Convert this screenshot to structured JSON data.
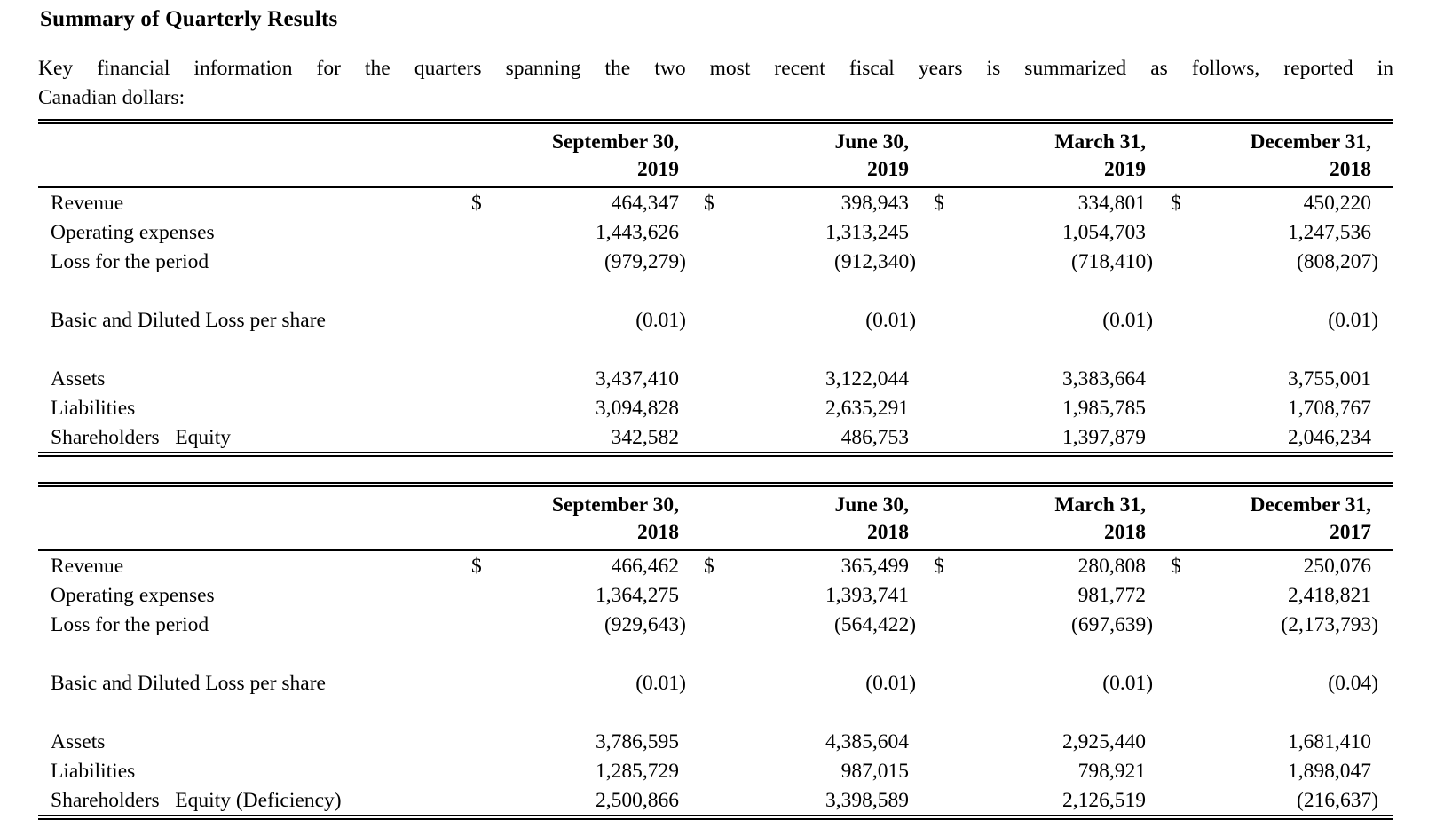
{
  "page": {
    "title": "Summary of Quarterly Results",
    "intro_line1": "Key financial information for the quarters spanning the two most recent fiscal years is summarized as follows, reported in",
    "intro_line2": "Canadian dollars:"
  },
  "currency_symbol": "$",
  "tables": [
    {
      "columns": [
        {
          "line1": "September 30,",
          "line2": "2019"
        },
        {
          "line1": "June 30,",
          "line2": "2019"
        },
        {
          "line1": "March 31,",
          "line2": "2019"
        },
        {
          "line1": "December 31,",
          "line2": "2018"
        }
      ],
      "rows": [
        {
          "label": "Revenue",
          "currency": "$",
          "values": [
            "464,347",
            "398,943",
            "334,801",
            "450,220"
          ]
        },
        {
          "label": "Operating expenses",
          "currency": "",
          "values": [
            "1,443,626",
            "1,313,245",
            "1,054,703",
            "1,247,536"
          ]
        },
        {
          "label": "Loss for the period",
          "currency": "",
          "values": [
            "(979,279)",
            "(912,340)",
            "(718,410)",
            "(808,207)"
          ]
        },
        {
          "label": "",
          "currency": "",
          "values": [
            "",
            "",
            "",
            ""
          ]
        },
        {
          "label": "Basic and Diluted Loss per share",
          "currency": "",
          "values": [
            "(0.01)",
            "(0.01)",
            "(0.01)",
            "(0.01)"
          ]
        },
        {
          "label": "",
          "currency": "",
          "values": [
            "",
            "",
            "",
            ""
          ]
        },
        {
          "label": "Assets",
          "currency": "",
          "values": [
            "3,437,410",
            "3,122,044",
            "3,383,664",
            "3,755,001"
          ]
        },
        {
          "label": "Liabilities",
          "currency": "",
          "values": [
            "3,094,828",
            "2,635,291",
            "1,985,785",
            "1,708,767"
          ]
        },
        {
          "label": "Shareholders   Equity",
          "currency": "",
          "values": [
            "342,582",
            "486,753",
            "1,397,879",
            "2,046,234"
          ]
        }
      ]
    },
    {
      "columns": [
        {
          "line1": "September 30,",
          "line2": "2018"
        },
        {
          "line1": "June 30,",
          "line2": "2018"
        },
        {
          "line1": "March 31,",
          "line2": "2018"
        },
        {
          "line1": "December 31,",
          "line2": "2017"
        }
      ],
      "rows": [
        {
          "label": "Revenue",
          "currency": "$",
          "values": [
            "466,462",
            "365,499",
            "280,808",
            "250,076"
          ]
        },
        {
          "label": "Operating expenses",
          "currency": "",
          "values": [
            "1,364,275",
            "1,393,741",
            "981,772",
            "2,418,821"
          ]
        },
        {
          "label": "Loss for the period",
          "currency": "",
          "values": [
            "(929,643)",
            "(564,422)",
            "(697,639)",
            "(2,173,793)"
          ]
        },
        {
          "label": "",
          "currency": "",
          "values": [
            "",
            "",
            "",
            ""
          ]
        },
        {
          "label": "Basic and Diluted Loss per share",
          "currency": "",
          "values": [
            "(0.01)",
            "(0.01)",
            "(0.01)",
            "(0.04)"
          ]
        },
        {
          "label": "",
          "currency": "",
          "values": [
            "",
            "",
            "",
            ""
          ]
        },
        {
          "label": "Assets",
          "currency": "",
          "values": [
            "3,786,595",
            "4,385,604",
            "2,925,440",
            "1,681,410"
          ]
        },
        {
          "label": "Liabilities",
          "currency": "",
          "values": [
            "1,285,729",
            "987,015",
            "798,921",
            "1,898,047"
          ]
        },
        {
          "label": "Shareholders   Equity (Deficiency)",
          "currency": "",
          "values": [
            "2,500,866",
            "3,398,589",
            "2,126,519",
            "(216,637)"
          ]
        }
      ]
    }
  ]
}
